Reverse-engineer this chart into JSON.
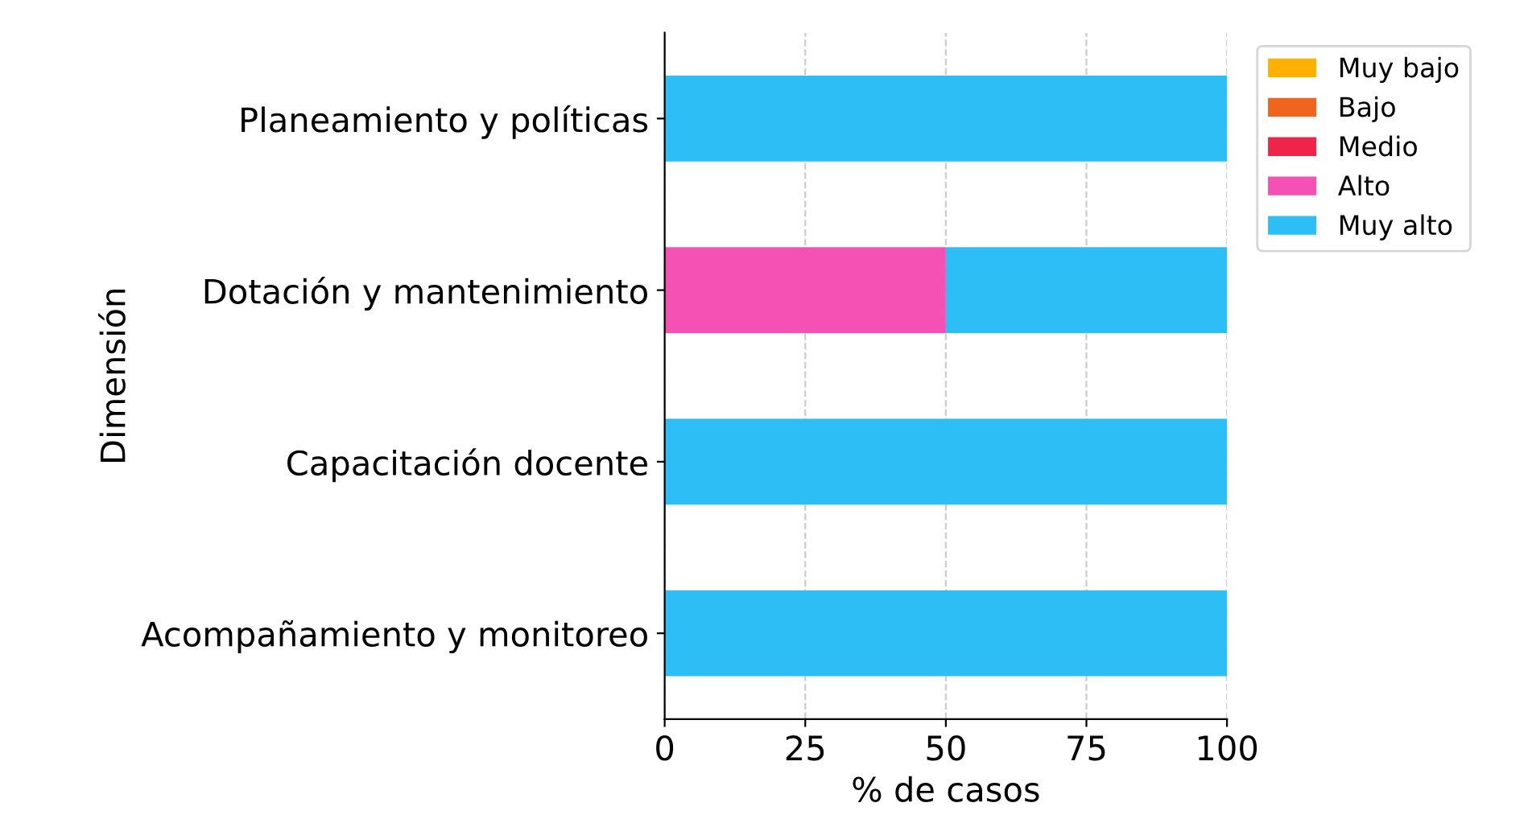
{
  "chart_data": {
    "type": "bar",
    "orientation": "horizontal",
    "stacked": true,
    "xlabel": "% de casos",
    "ylabel": "Dimensión",
    "categories": [
      "Planeamiento y políticas",
      "Dotación y mantenimiento",
      "Capacitación docente",
      "Acompañamiento y monitoreo"
    ],
    "series": [
      {
        "name": "Muy bajo",
        "color": "#ffb000",
        "values": [
          0,
          0,
          0,
          0
        ]
      },
      {
        "name": "Bajo",
        "color": "#f0641e",
        "values": [
          0,
          0,
          0,
          0
        ]
      },
      {
        "name": "Medio",
        "color": "#f0234b",
        "values": [
          0,
          0,
          0,
          0
        ]
      },
      {
        "name": "Alto",
        "color": "#f550b4",
        "values": [
          0,
          50,
          0,
          0
        ]
      },
      {
        "name": "Muy alto",
        "color": "#2dbef5",
        "values": [
          100,
          50,
          100,
          100
        ]
      }
    ],
    "xlim": [
      0,
      100
    ],
    "xticks": [
      0,
      25,
      50,
      75,
      100
    ],
    "grid": "x",
    "legend": "top right"
  }
}
